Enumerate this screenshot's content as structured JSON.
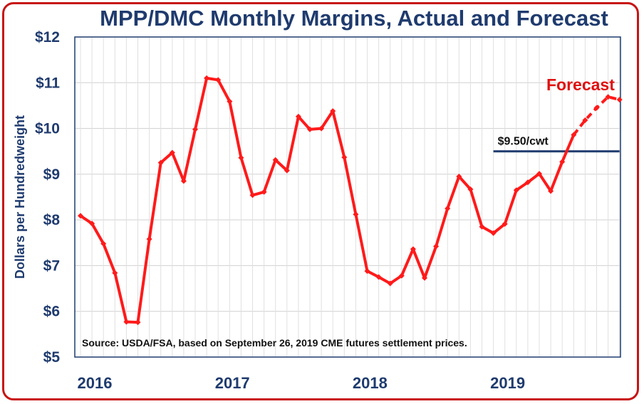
{
  "chart_data": {
    "type": "line",
    "title": "MPP/DMC Monthly Margins, Actual and Forecast",
    "ylabel": "Dollars per Hundredweight",
    "xlabel": "",
    "ylim": [
      5,
      12
    ],
    "y_ticks": [
      "$5",
      "$6",
      "$7",
      "$8",
      "$9",
      "$10",
      "$11",
      "$12"
    ],
    "x_ticks": [
      "2016",
      "2017",
      "2018",
      "2019"
    ],
    "x_tick_index": [
      0,
      12,
      24,
      36
    ],
    "grid": true,
    "colors": {
      "line": "#ff1a1a",
      "text": "#1f3b6e",
      "frame": "#c81414",
      "reference": "#1f3b6e"
    },
    "series": [
      {
        "values": [
          8.09,
          7.92,
          7.48,
          6.84,
          5.77,
          5.76,
          7.58,
          9.25,
          9.47,
          8.85,
          9.98,
          11.1,
          11.06,
          10.59,
          9.36,
          8.54,
          8.61,
          9.31,
          9.08,
          10.26,
          9.98,
          10.0,
          10.38,
          9.37,
          8.12,
          6.88,
          6.75,
          6.61,
          6.78,
          7.36,
          6.73,
          7.42,
          8.25,
          8.95,
          8.67,
          7.85,
          7.71,
          7.91,
          8.65,
          8.82,
          9.01,
          8.63,
          9.27,
          9.86,
          10.18,
          10.45,
          10.69,
          10.63
        ],
        "forecast_start_index": 43
      }
    ],
    "reference_line": {
      "label": "$9.50/cwt",
      "value": 9.5,
      "start_index": 36,
      "end_index": 47
    },
    "annotations": {
      "source": "Source:  USDA/FSA, based on September 26, 2019 CME futures settlement prices.",
      "forecast_label": "Forecast"
    }
  }
}
